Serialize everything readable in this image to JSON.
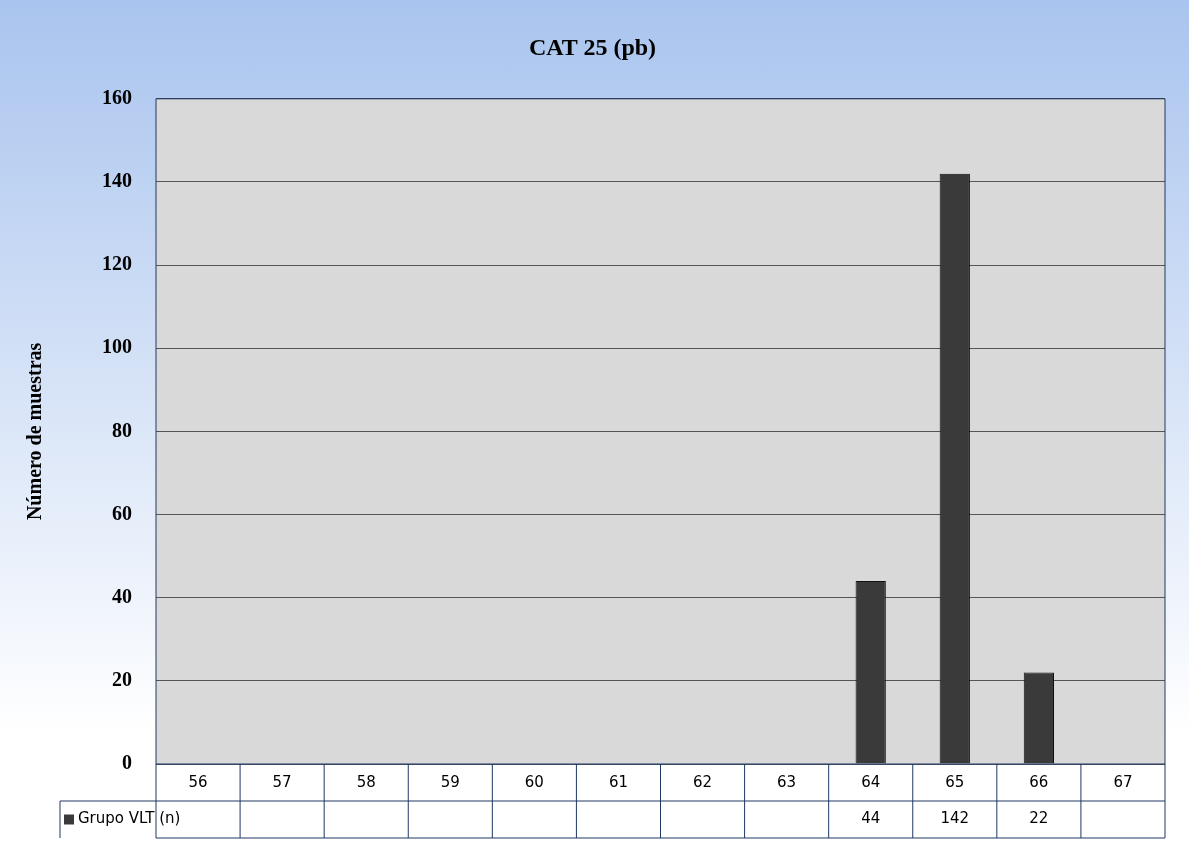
{
  "chart_data": {
    "type": "bar",
    "title": "CAT 25 (pb)",
    "ylabel": "Número de muestras",
    "categories": [
      "56",
      "57",
      "58",
      "59",
      "60",
      "61",
      "62",
      "63",
      "64",
      "65",
      "66",
      "67"
    ],
    "series": [
      {
        "name": "Grupo VLT (n)",
        "color": "#3a3a3a",
        "values": [
          null,
          null,
          null,
          null,
          null,
          null,
          null,
          null,
          44,
          142,
          22,
          null
        ]
      }
    ],
    "ylim": [
      0,
      160
    ],
    "yticks": [
      0,
      20,
      40,
      60,
      80,
      100,
      120,
      140,
      160
    ],
    "grid": "y",
    "legend": "bottom",
    "data_labels": true
  }
}
